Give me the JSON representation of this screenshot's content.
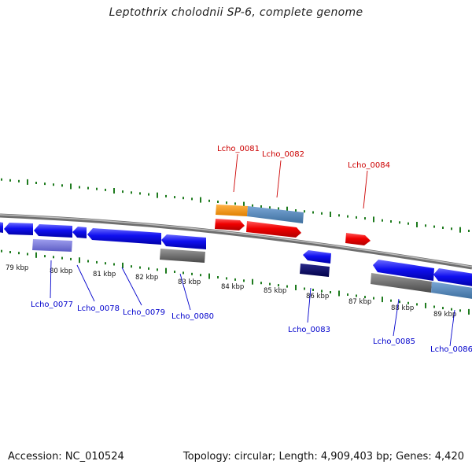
{
  "title": "Leptothrix cholodnii SP-6, complete genome",
  "footer": {
    "accession": "Accession: NC_010524",
    "summary": "Topology: circular; Length: 4,909,403 bp; Genes: 4,420"
  },
  "colors": {
    "plus_strand_label": "#cc0000",
    "minus_strand_label": "#0000cc",
    "tick": "#1e7b1e",
    "backbone": "#888888"
  },
  "scale_labels": [
    "79 kbp",
    "80 kbp",
    "81 kbp",
    "82 kbp",
    "83 kbp",
    "84 kbp",
    "85 kbp",
    "86 kbp",
    "87 kbp",
    "88 kbp",
    "89 kbp"
  ],
  "gene_labels": [
    {
      "text": "Lcho_0081",
      "strand": "plus"
    },
    {
      "text": "Lcho_0082",
      "strand": "plus"
    },
    {
      "text": "Lcho_0084",
      "strand": "plus"
    },
    {
      "text": "Lcho_0077",
      "strand": "minus"
    },
    {
      "text": "Lcho_0078",
      "strand": "minus"
    },
    {
      "text": "Lcho_0079",
      "strand": "minus"
    },
    {
      "text": "Lcho_0080",
      "strand": "minus"
    },
    {
      "text": "Lcho_0083",
      "strand": "minus"
    },
    {
      "text": "Lcho_0085",
      "strand": "minus"
    },
    {
      "text": "Lcho_0086",
      "strand": "minus"
    }
  ]
}
